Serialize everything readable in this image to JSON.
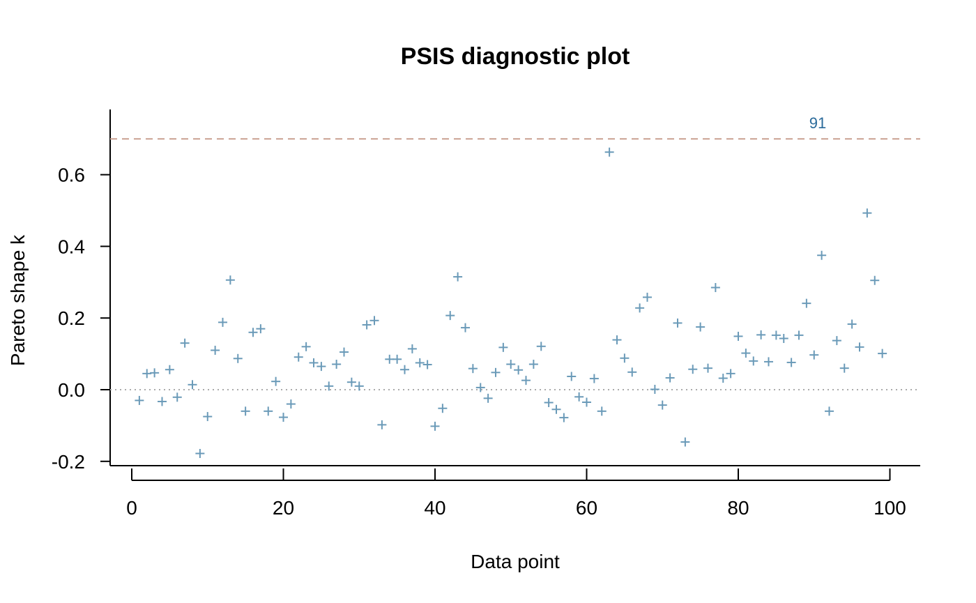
{
  "chart_data": {
    "type": "scatter",
    "title": "PSIS diagnostic plot",
    "xlabel": "Data point",
    "ylabel": "Pareto shape k",
    "xlim": [
      0,
      100
    ],
    "ylim": [
      -0.2,
      0.7
    ],
    "x_ticks": [
      0,
      20,
      40,
      60,
      80,
      100
    ],
    "x_tick_labels": [
      "0",
      "20",
      "40",
      "60",
      "80",
      "100"
    ],
    "y_ticks": [
      -0.2,
      0.0,
      0.2,
      0.4,
      0.6
    ],
    "y_tick_labels": [
      "-0.2",
      "0.0",
      "0.2",
      "0.4",
      "0.6"
    ],
    "grid": false,
    "marker": "plus",
    "point_color": "#6a9ab8",
    "reference_lines": [
      {
        "y": 0.7,
        "style": "dashed",
        "color": "#c9a090"
      },
      {
        "y": 0.0,
        "style": "dotted",
        "color": "#aaaaaa"
      }
    ],
    "annotations": [
      {
        "text": "91",
        "color": "#2a6a9a"
      }
    ],
    "x": [
      1,
      2,
      3,
      4,
      5,
      6,
      7,
      8,
      9,
      10,
      11,
      12,
      13,
      14,
      15,
      16,
      17,
      18,
      19,
      20,
      21,
      22,
      23,
      24,
      25,
      26,
      27,
      28,
      29,
      30,
      31,
      32,
      33,
      34,
      35,
      36,
      37,
      38,
      39,
      40,
      41,
      42,
      43,
      44,
      45,
      46,
      47,
      48,
      49,
      50,
      51,
      52,
      53,
      54,
      55,
      56,
      57,
      58,
      59,
      60,
      61,
      62,
      63,
      64,
      65,
      66,
      67,
      68,
      69,
      70,
      71,
      72,
      73,
      74,
      75,
      76,
      77,
      78,
      79,
      80,
      81,
      82,
      83,
      84,
      85,
      86,
      87,
      88,
      89,
      90,
      91,
      92,
      93,
      94,
      95,
      96,
      97,
      98,
      99
    ],
    "y": [
      -0.03,
      0.045,
      0.047,
      -0.033,
      0.056,
      -0.021,
      0.13,
      0.014,
      -0.178,
      -0.075,
      0.11,
      0.188,
      0.306,
      0.087,
      -0.06,
      0.16,
      0.17,
      -0.06,
      0.023,
      -0.077,
      -0.04,
      0.091,
      0.12,
      0.075,
      0.065,
      0.01,
      0.071,
      0.105,
      0.021,
      0.01,
      0.181,
      0.193,
      -0.098,
      0.085,
      0.085,
      0.056,
      0.114,
      0.075,
      0.07,
      -0.102,
      -0.052,
      0.207,
      0.315,
      0.173,
      0.059,
      0.006,
      -0.024,
      0.048,
      0.118,
      0.071,
      0.055,
      0.026,
      0.071,
      0.121,
      -0.036,
      -0.055,
      -0.078,
      0.037,
      -0.02,
      -0.035,
      0.031,
      -0.06,
      0.663,
      0.139,
      0.088,
      0.049,
      0.228,
      0.258,
      0.001,
      -0.043,
      0.033,
      0.186,
      -0.146,
      0.057,
      0.175,
      0.06,
      0.285,
      0.032,
      0.045,
      0.149,
      0.102,
      0.08,
      0.153,
      0.078,
      0.152,
      0.143,
      0.076,
      0.152,
      0.241,
      0.097,
      0.375,
      -0.06,
      0.137,
      0.06,
      0.183,
      0.119,
      0.493,
      0.305,
      0.101
    ]
  }
}
